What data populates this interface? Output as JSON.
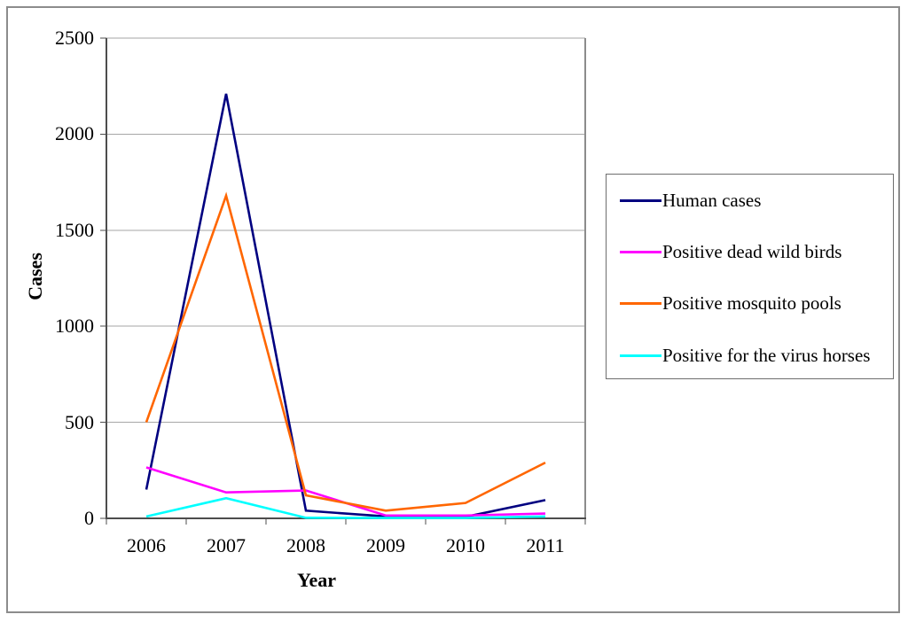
{
  "figure": {
    "background": "#ffffff",
    "frame_color": "#8c8c8c"
  },
  "chart_data": {
    "type": "line",
    "title": "",
    "xlabel": "Year",
    "ylabel": "Cases",
    "categories": [
      "2006",
      "2007",
      "2008",
      "2009",
      "2010",
      "2011"
    ],
    "series": [
      {
        "name": "Human cases",
        "color": "#000080",
        "values": [
          150,
          2210,
          40,
          10,
          8,
          95
        ]
      },
      {
        "name": "Positive dead wild birds",
        "color": "#ff00ff",
        "values": [
          265,
          135,
          145,
          15,
          15,
          25
        ]
      },
      {
        "name": "Positive mosquito pools",
        "color": "#ff6600",
        "values": [
          500,
          1680,
          120,
          40,
          80,
          290
        ]
      },
      {
        "name": "Positive for the virus horses",
        "color": "#00ffff",
        "values": [
          10,
          105,
          3,
          2,
          2,
          10
        ]
      }
    ],
    "ylim": [
      0,
      2500
    ],
    "yticks": [
      0,
      500,
      1000,
      1500,
      2000,
      2500
    ],
    "grid": "horizontal",
    "legend_position": "right",
    "colors": {
      "axis": "#4d4d4d",
      "gridline": "#a6a6a6",
      "plot_right_border": "#8c8c8c",
      "text": "#000000"
    }
  }
}
